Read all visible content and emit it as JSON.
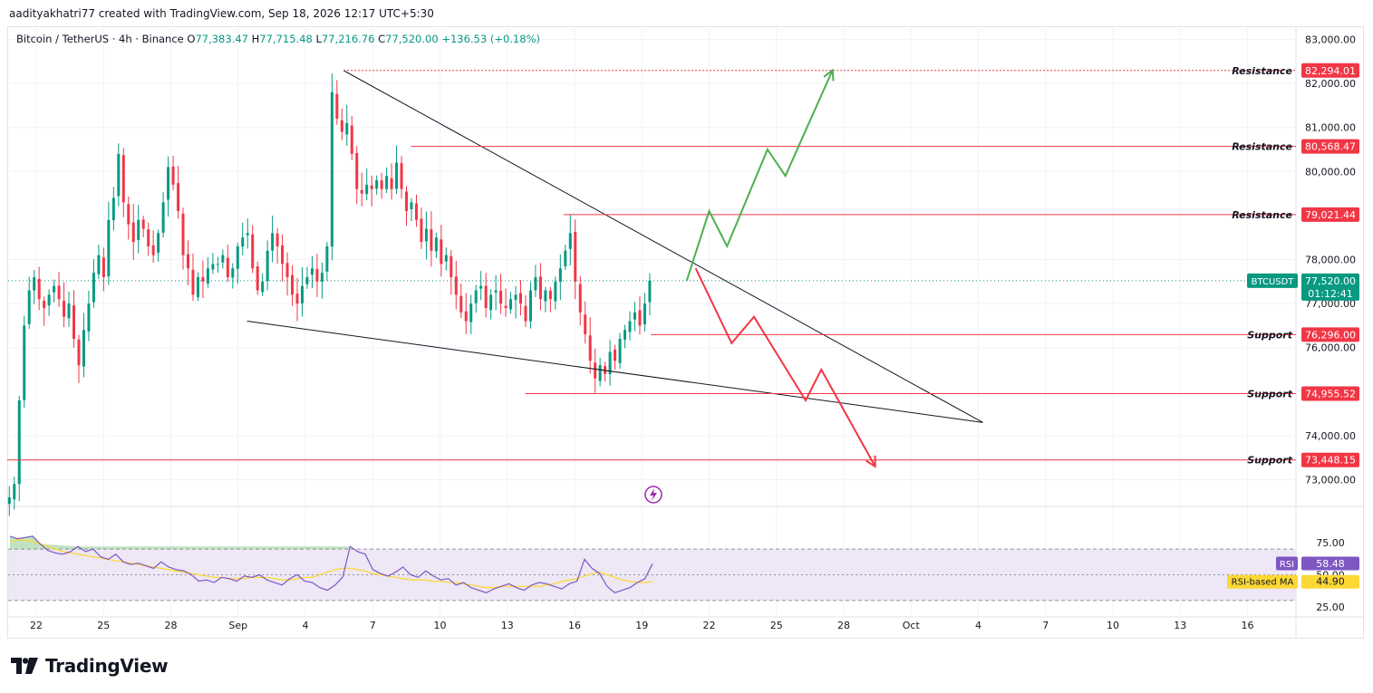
{
  "header": {
    "attribution": "aadityakhatri77 created with TradingView.com, Sep 18, 2026 12:17 UTC+5:30"
  },
  "legend": {
    "symbol": "Bitcoin / TetherUS · 4h · Binance",
    "open_label": "O",
    "open": "77,383.47",
    "high_label": "H",
    "high": "77,715.48",
    "low_label": "L",
    "low": "77,216.76",
    "close_label": "C",
    "close": "77,520.00",
    "change": "+136.53 (+0.18%)"
  },
  "footer": {
    "brand": "TradingView"
  },
  "colors": {
    "up": "#089981",
    "down": "#f23645",
    "resistance": "#f23645",
    "bull_path": "#4caf50",
    "bear_path": "#f23645",
    "rsi": "#7e57c2",
    "rsi_ma": "#fdd835",
    "rsi_band": "#ede7f6",
    "badge_current": "#089981"
  },
  "chart_data": [
    {
      "type": "candlestick",
      "title": "Bitcoin / TetherUS · 4h · Binance",
      "x_tick_labels": [
        "22",
        "25",
        "28",
        "Sep",
        "4",
        "7",
        "10",
        "13",
        "16",
        "19",
        "22",
        "25",
        "28",
        "Oct",
        "4",
        "7",
        "10",
        "13",
        "16"
      ],
      "y_tick_labels": [
        "83,000.00",
        "82,000.00",
        "81,000.00",
        "80,000.00",
        "78,000.00",
        "77,000.00",
        "76,000.00",
        "74,000.00",
        "73,000.00"
      ],
      "ylim": [
        72700,
        83300
      ],
      "current_price": {
        "symbol": "BTCUSDT",
        "price": "77,520.00",
        "countdown": "01:12:41",
        "value": 77520
      },
      "close_series_approx": [
        72600,
        72900,
        74800,
        76500,
        77300,
        77600,
        77100,
        76900,
        77200,
        77400,
        77100,
        76700,
        77000,
        76200,
        75600,
        76400,
        77000,
        77700,
        78100,
        77600,
        78900,
        79400,
        80400,
        79300,
        78800,
        78400,
        78900,
        78700,
        78300,
        78100,
        78600,
        79300,
        80100,
        79700,
        79100,
        78100,
        77800,
        77200,
        77600,
        77500,
        77800,
        77900,
        77900,
        78100,
        77600,
        77800,
        78300,
        78500,
        78600,
        77800,
        77300,
        77500,
        78200,
        78600,
        78300,
        77900,
        77600,
        77200,
        77000,
        77400,
        77600,
        77800,
        77500,
        77700,
        78300,
        81800,
        81200,
        80900,
        81100,
        80400,
        79600,
        79500,
        79700,
        79600,
        79800,
        79600,
        79900,
        79600,
        80200,
        79600,
        79100,
        79300,
        78900,
        78400,
        78700,
        78200,
        78500,
        77900,
        78100,
        77600,
        77200,
        76800,
        76600,
        77000,
        77300,
        77400,
        76900,
        77200,
        77300,
        77000,
        76900,
        77100,
        77200,
        77000,
        76600,
        77300,
        77600,
        77100,
        77300,
        77100,
        77500,
        77800,
        78200,
        78600,
        77500,
        76800,
        76300,
        75700,
        75300,
        75600,
        75400,
        75900,
        75700,
        76200,
        76400,
        76600,
        76800,
        76500,
        77000,
        77520
      ],
      "levels": [
        {
          "label": "Resistance",
          "value": 82294.01,
          "price": "82,294.01"
        },
        {
          "label": "Resistance",
          "value": 80568.47,
          "price": "80,568.47"
        },
        {
          "label": "Resistance",
          "value": 79021.44,
          "price": "79,021.44"
        },
        {
          "label": "Support",
          "value": 76296.0,
          "price": "76,296.00"
        },
        {
          "label": "Support",
          "value": 74955.52,
          "price": "74,955.52"
        },
        {
          "label": "Support",
          "value": 73448.15,
          "price": "73,448.15"
        }
      ],
      "trendlines": [
        {
          "name": "upper",
          "from": {
            "x": "Sep 4",
            "y": 82294
          },
          "to": {
            "x": "Oct 2",
            "y": 74300
          }
        },
        {
          "name": "lower",
          "from": {
            "x": "Aug 31",
            "y": 76600
          },
          "to": {
            "x": "Oct 2",
            "y": 74300
          }
        }
      ],
      "scenario_paths": [
        {
          "name": "bullish",
          "points": [
            [
              19.0,
              77520
            ],
            [
              20.0,
              79100
            ],
            [
              20.8,
              78300
            ],
            [
              22.6,
              80500
            ],
            [
              23.4,
              79900
            ],
            [
              25.5,
              82300
            ]
          ]
        },
        {
          "name": "bearish",
          "points": [
            [
              19.4,
              77800
            ],
            [
              21.0,
              76100
            ],
            [
              22.0,
              76700
            ],
            [
              24.3,
              74800
            ],
            [
              25.0,
              75500
            ],
            [
              27.4,
              73300
            ]
          ]
        }
      ]
    },
    {
      "type": "line",
      "title": "RSI",
      "y_tick_labels": [
        "75.00",
        "50.00",
        "25.00"
      ],
      "ylim": [
        22,
        85
      ],
      "bands": [
        30,
        70
      ],
      "series": [
        {
          "name": "RSI",
          "value_label": "58.48",
          "values": [
            80,
            78,
            79,
            80,
            74,
            69,
            67,
            66,
            68,
            72,
            68,
            70,
            64,
            62,
            66,
            60,
            58,
            59,
            57,
            55,
            60,
            56,
            54,
            53,
            50,
            45,
            46,
            44,
            48,
            47,
            45,
            49,
            48,
            50,
            46,
            44,
            42,
            47,
            50,
            45,
            44,
            40,
            38,
            42,
            48,
            72,
            68,
            66,
            54,
            51,
            49,
            52,
            56,
            50,
            48,
            53,
            49,
            46,
            47,
            42,
            44,
            40,
            38,
            36,
            39,
            41,
            43,
            40,
            38,
            42,
            44,
            43,
            41,
            39,
            43,
            45,
            62,
            55,
            51,
            41,
            36,
            38,
            40,
            44,
            47,
            58.48
          ]
        },
        {
          "name": "RSI-based MA",
          "value_label": "44.90",
          "values": [
            76,
            77,
            77,
            76,
            74,
            72,
            70,
            68,
            67,
            66,
            65,
            64,
            63,
            62,
            61,
            60,
            59,
            58,
            57,
            56,
            55,
            54,
            53,
            52,
            51,
            50,
            49,
            48,
            48,
            47,
            47,
            47,
            48,
            48,
            48,
            47,
            46,
            46,
            47,
            48,
            48,
            50,
            52,
            54,
            55,
            55,
            54,
            53,
            51,
            50,
            49,
            48,
            47,
            46,
            46,
            46,
            45,
            45,
            44,
            44,
            43,
            42,
            41,
            40,
            40,
            41,
            41,
            41,
            41,
            41,
            41,
            42,
            43,
            45,
            46,
            47,
            49,
            51,
            52,
            50,
            48,
            46,
            45,
            44,
            44,
            44.9
          ]
        }
      ]
    }
  ]
}
